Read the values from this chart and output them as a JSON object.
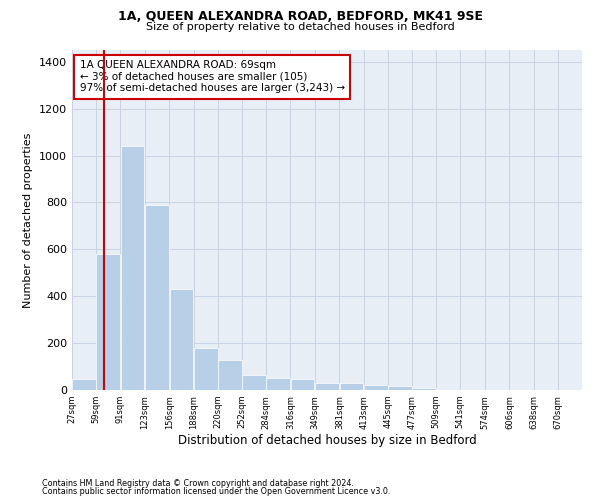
{
  "title1": "1A, QUEEN ALEXANDRA ROAD, BEDFORD, MK41 9SE",
  "title2": "Size of property relative to detached houses in Bedford",
  "xlabel": "Distribution of detached houses by size in Bedford",
  "ylabel": "Number of detached properties",
  "bar_left_edges": [
    27,
    59,
    91,
    123,
    156,
    188,
    220,
    252,
    284,
    316,
    349,
    381,
    413,
    445,
    477,
    509,
    541,
    574,
    606,
    638
  ],
  "bar_heights": [
    45,
    580,
    1040,
    790,
    430,
    180,
    128,
    65,
    50,
    45,
    30,
    28,
    20,
    15,
    10,
    0,
    0,
    0,
    0,
    0
  ],
  "bin_width": 32,
  "bar_color": "#b8cfe8",
  "bar_edgecolor": "white",
  "grid_color": "#c8d4e4",
  "background_color": "#e8eef6",
  "vline_x": 69,
  "vline_color": "#cc0000",
  "annotation_lines": [
    "1A QUEEN ALEXANDRA ROAD: 69sqm",
    "← 3% of detached houses are smaller (105)",
    "97% of semi-detached houses are larger (3,243) →"
  ],
  "annotation_box_color": "#cc0000",
  "ylim": [
    0,
    1450
  ],
  "yticks": [
    0,
    200,
    400,
    600,
    800,
    1000,
    1200,
    1400
  ],
  "tick_labels": [
    "27sqm",
    "59sqm",
    "91sqm",
    "123sqm",
    "156sqm",
    "188sqm",
    "220sqm",
    "252sqm",
    "284sqm",
    "316sqm",
    "349sqm",
    "381sqm",
    "413sqm",
    "445sqm",
    "477sqm",
    "509sqm",
    "541sqm",
    "574sqm",
    "606sqm",
    "638sqm",
    "670sqm"
  ],
  "footnote1": "Contains HM Land Registry data © Crown copyright and database right 2024.",
  "footnote2": "Contains public sector information licensed under the Open Government Licence v3.0."
}
